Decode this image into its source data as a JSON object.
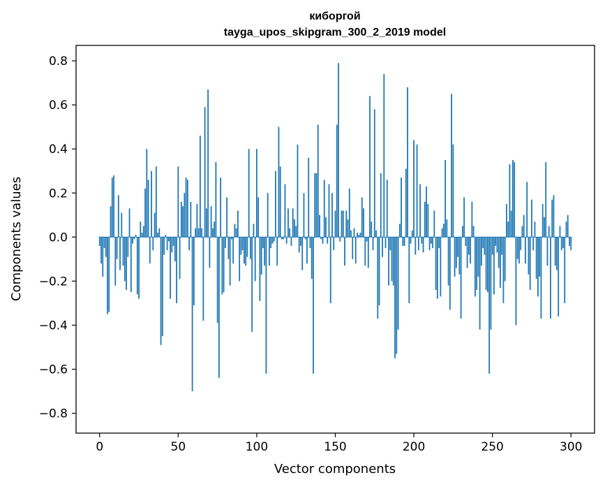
{
  "chart_data": {
    "type": "bar",
    "title": "киборгой",
    "subtitle": "tayga_upos_skipgram_300_2_2019 model",
    "xlabel": "Vector components",
    "ylabel": "Components values",
    "xlim": [
      -15,
      315
    ],
    "ylim": [
      -0.89,
      0.87
    ],
    "xticks": [
      0,
      50,
      100,
      150,
      200,
      250,
      300
    ],
    "xtick_labels": [
      "0",
      "50",
      "100",
      "150",
      "200",
      "250",
      "300"
    ],
    "yticks": [
      0.8,
      0.6,
      0.4,
      0.2,
      0.0,
      -0.2,
      -0.4,
      -0.6,
      -0.8
    ],
    "ytick_labels": [
      "0.8",
      "0.6",
      "0.4",
      "0.2",
      "0.0",
      "−0.2",
      "−0.4",
      "−0.6",
      "−0.8"
    ],
    "grid": false,
    "bar_color": "#1f77b4",
    "values": [
      -0.04,
      -0.12,
      -0.18,
      -0.05,
      -0.09,
      -0.35,
      -0.34,
      0.14,
      0.27,
      0.28,
      -0.22,
      -0.1,
      0.19,
      -0.15,
      0.11,
      -0.13,
      -0.2,
      -0.24,
      -0.09,
      0.13,
      -0.25,
      -0.03,
      -0.01,
      0.01,
      -0.26,
      -0.28,
      0.07,
      0.02,
      0.05,
      0.22,
      0.4,
      0.26,
      -0.12,
      0.3,
      -0.06,
      0.11,
      0.32,
      0.02,
      0.04,
      -0.49,
      -0.45,
      -0.08,
      0.01,
      -0.06,
      -0.02,
      -0.28,
      -0.07,
      -0.04,
      -0.11,
      -0.3,
      0.32,
      -0.19,
      0.16,
      0.14,
      0.2,
      0.27,
      0.26,
      -0.06,
      0.16,
      -0.7,
      -0.31,
      0.04,
      0.15,
      0.04,
      0.46,
      0.04,
      -0.38,
      0.59,
      0.13,
      0.67,
      -0.14,
      0.14,
      0.04,
      0.07,
      0.34,
      -0.39,
      -0.64,
      0.27,
      -0.26,
      -0.25,
      -0.05,
      0.18,
      -0.1,
      -0.22,
      -0.01,
      -0.12,
      0.06,
      0.04,
      0.12,
      -0.2,
      -0.08,
      -0.06,
      -0.12,
      -0.13,
      -0.09,
      0.4,
      -0.1,
      -0.43,
      0.06,
      -0.2,
      0.4,
      0.18,
      -0.29,
      -0.17,
      -0.05,
      -0.13,
      -0.62,
      0.2,
      -0.13,
      -0.05,
      -0.03,
      -0.02,
      0.3,
      -0.13,
      0.5,
      0.32,
      -0.01,
      -0.01,
      0.24,
      -0.03,
      0.13,
      0.04,
      -0.04,
      0.13,
      0.08,
      0.05,
      0.42,
      -0.07,
      -0.04,
      -0.15,
      0.2,
      -0.01,
      -0.12,
      0.36,
      -0.05,
      -0.19,
      -0.62,
      0.29,
      0.29,
      0.51,
      0.1,
      -0.01,
      -0.03,
      0.26,
      0.09,
      -0.03,
      0.24,
      -0.3,
      0.2,
      -0.06,
      0.12,
      0.51,
      0.79,
      -0.02,
      0.12,
      0.12,
      -0.13,
      0.12,
      0.08,
      0.22,
      0.03,
      -0.1,
      0.04,
      -0.12,
      0.02,
      0.01,
      0.02,
      0.18,
      0.13,
      -0.13,
      -0.02,
      -0.14,
      0.64,
      0.07,
      -0.06,
      0.58,
      0.03,
      -0.37,
      -0.31,
      0.29,
      -0.09,
      0.74,
      -0.05,
      0.26,
      -0.22,
      -0.06,
      -0.2,
      -0.22,
      -0.55,
      -0.53,
      -0.42,
      0.06,
      0.27,
      -0.04,
      -0.04,
      0.31,
      0.68,
      -0.3,
      -0.03,
      0.03,
      0.44,
      -0.08,
      0.42,
      -0.06,
      0.24,
      -0.03,
      -0.07,
      0.16,
      0.23,
      0.15,
      -0.06,
      -0.03,
      -0.05,
      0.12,
      -0.24,
      -0.28,
      -0.05,
      -0.27,
      0.04,
      0.06,
      0.35,
      0.08,
      -0.22,
      -0.33,
      0.65,
      0.42,
      -0.18,
      -0.14,
      -0.09,
      -0.17,
      -0.37,
      0.05,
      0.18,
      -0.04,
      -0.14,
      -0.08,
      -0.12,
      0.16,
      0.05,
      -0.27,
      -0.24,
      -0.18,
      -0.42,
      -0.13,
      -0.05,
      -0.08,
      -0.24,
      -0.25,
      -0.62,
      -0.42,
      -0.08,
      -0.26,
      -0.04,
      -0.07,
      -0.14,
      -0.23,
      -0.08,
      -0.3,
      -0.2,
      0.15,
      0.07,
      0.33,
      0.12,
      0.35,
      0.34,
      -0.4,
      -0.1,
      -0.12,
      -0.06,
      0.05,
      0.1,
      -0.12,
      0.25,
      -0.17,
      -0.24,
      0.17,
      -0.06,
      0.07,
      -0.19,
      -0.27,
      -0.18,
      -0.37,
      0.15,
      0.09,
      0.34,
      -0.13,
      0.05,
      -0.37,
      0.17,
      0.19,
      -0.13,
      -0.15,
      -0.36,
      0.05,
      -0.06,
      -0.05,
      -0.3,
      0.07,
      0.1,
      -0.04,
      -0.06
    ]
  }
}
